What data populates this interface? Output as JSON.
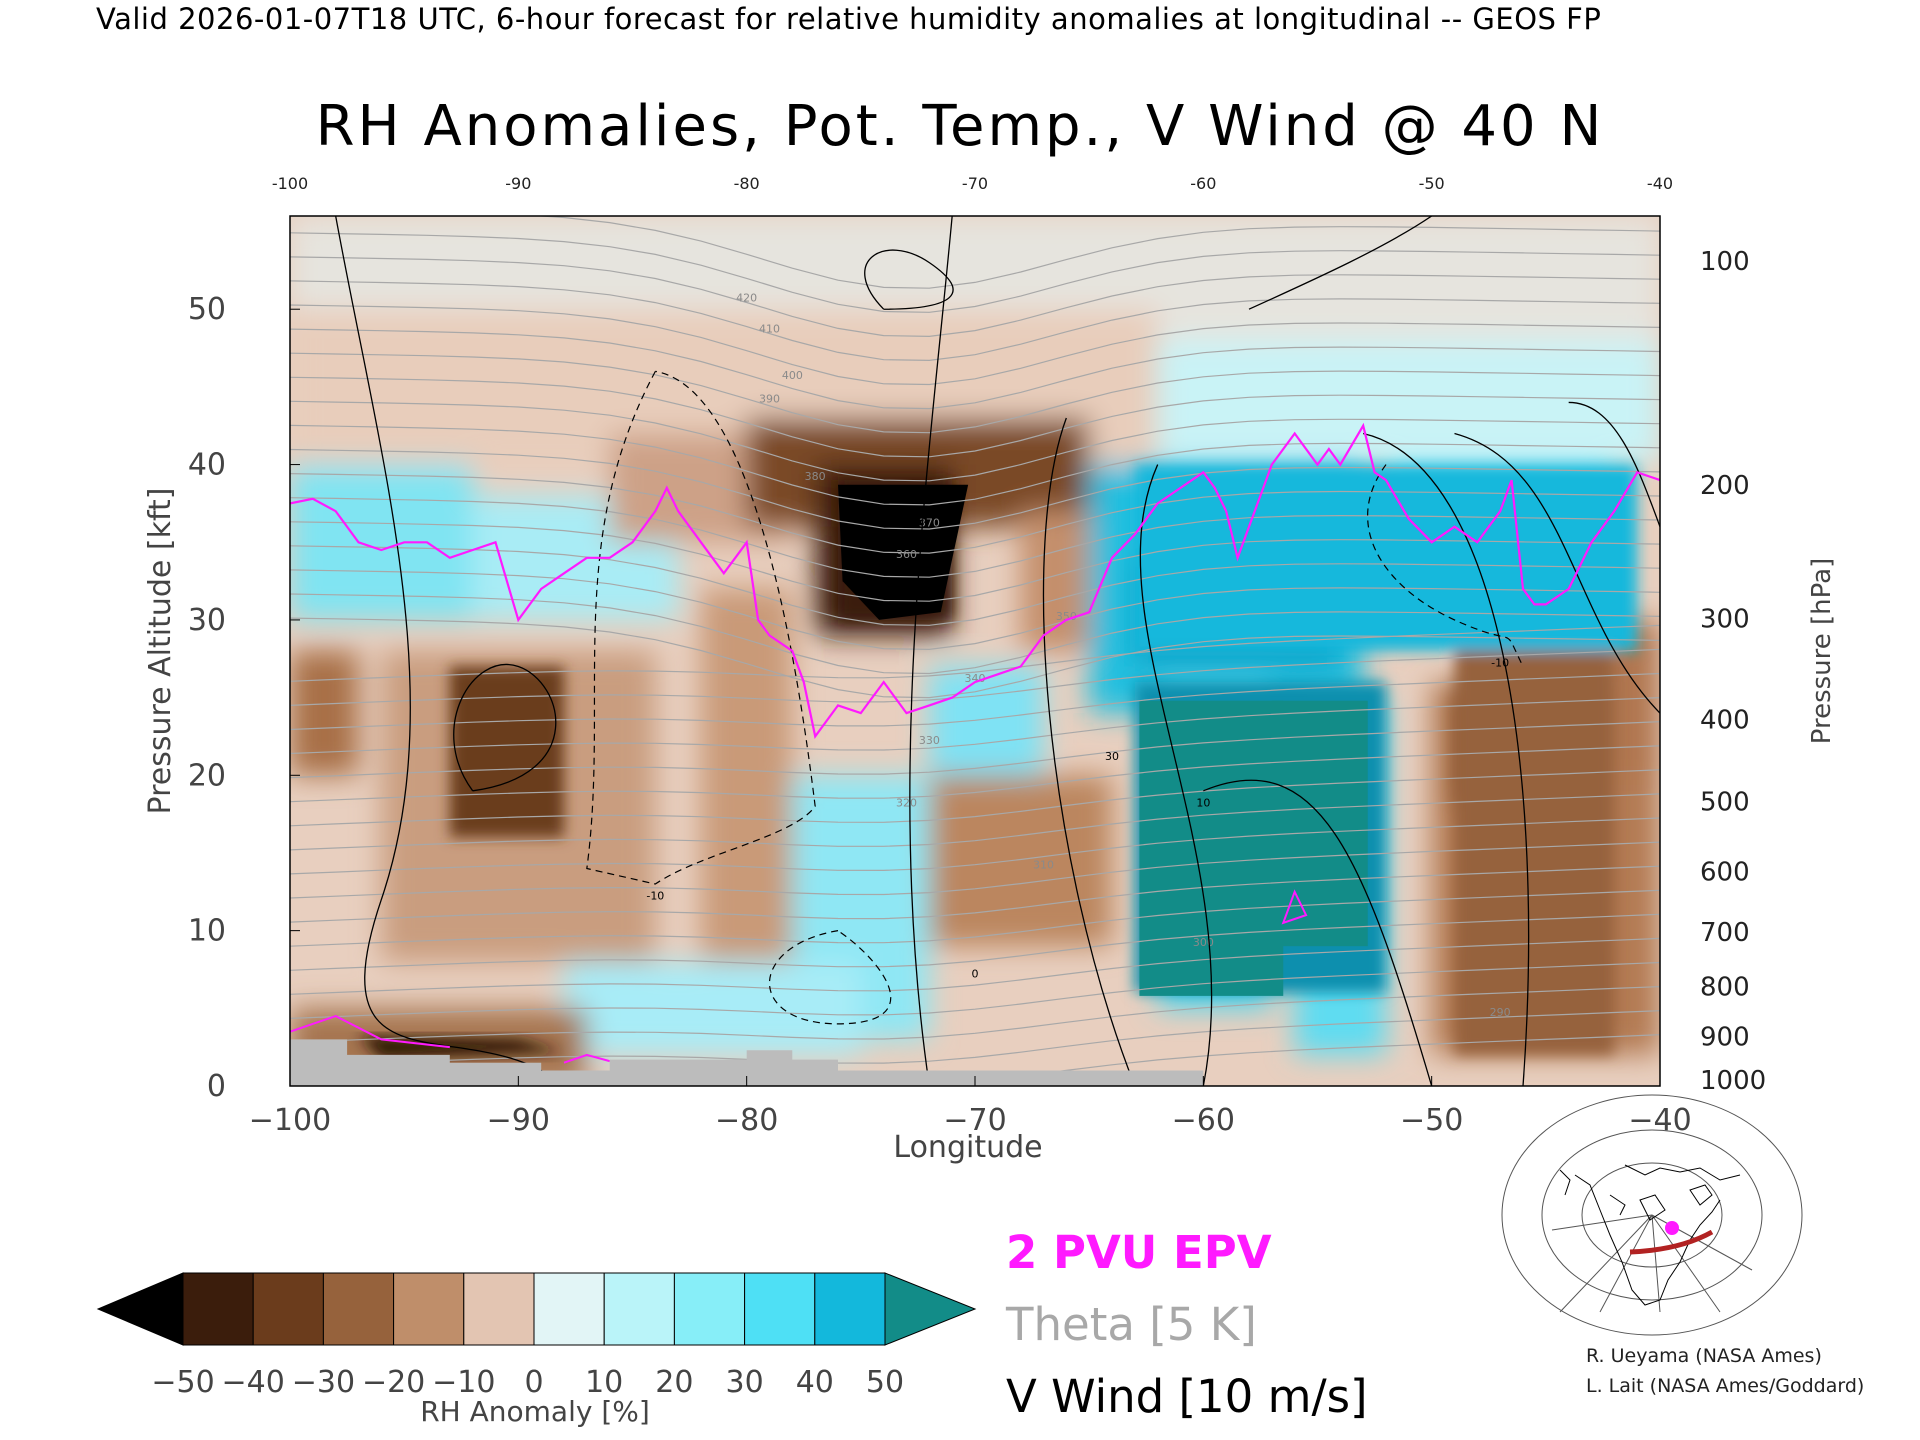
{
  "header": "Valid 2026-01-07T18 UTC, 6-hour forecast for relative humidity anomalies at longitudinal -- GEOS FP",
  "chart_data": {
    "type": "heatmap",
    "title": "RH Anomalies, Pot. Temp., V Wind @ 40 N",
    "xlabel": "Longitude",
    "ylabel": "Pressure Altitude [kft]",
    "y2label": "Pressure [hPa]",
    "xlim": [
      -100,
      -40
    ],
    "ylim": [
      0,
      56
    ],
    "x_ticks": [
      "−100",
      "−90",
      "−80",
      "−70",
      "−60",
      "−50",
      "−40"
    ],
    "x_top_ticks": [
      "-100",
      "-90",
      "-80",
      "-70",
      "-60",
      "-50",
      "-40"
    ],
    "y_ticks": [
      {
        "v": 0,
        "t": "0"
      },
      {
        "v": 10,
        "t": "10"
      },
      {
        "v": 20,
        "t": "20"
      },
      {
        "v": 30,
        "t": "30"
      },
      {
        "v": 40,
        "t": "40"
      },
      {
        "v": 50,
        "t": "50"
      }
    ],
    "pressure_ticks": [
      {
        "alt": 53.1,
        "t": "100"
      },
      {
        "alt": 38.7,
        "t": "200"
      },
      {
        "alt": 30.1,
        "t": "300"
      },
      {
        "alt": 23.6,
        "t": "400"
      },
      {
        "alt": 18.3,
        "t": "500"
      },
      {
        "alt": 13.8,
        "t": "600"
      },
      {
        "alt": 9.9,
        "t": "700"
      },
      {
        "alt": 6.4,
        "t": "800"
      },
      {
        "alt": 3.2,
        "t": "900"
      },
      {
        "alt": 0.4,
        "t": "1000"
      }
    ],
    "colorbar": {
      "label": "RH Anomaly [%]",
      "ticks": [
        "−50",
        "−40",
        "−30",
        "−20",
        "−10",
        "0",
        "10",
        "20",
        "30",
        "40",
        "50"
      ],
      "colors": [
        "#000000",
        "#3b1d0c",
        "#6b3c1c",
        "#96623c",
        "#bf8e6a",
        "#e3c5b2",
        "#e2f5f6",
        "#baf4f9",
        "#87eef8",
        "#4ee0f5",
        "#13b8dc",
        "#0c8fae",
        "#128c88"
      ]
    },
    "regions": [
      {
        "name": "strong dry anomaly",
        "lon": [
          -76,
          -71
        ],
        "alt": [
          30,
          39
        ],
        "rh": -50
      },
      {
        "name": "dry anomaly",
        "lon": [
          -93,
          -88
        ],
        "alt": [
          16,
          27
        ],
        "rh": -35
      },
      {
        "name": "dry anomaly",
        "lon": [
          -49,
          -42
        ],
        "alt": [
          2,
          28
        ],
        "rh": -30
      },
      {
        "name": "moist anomaly",
        "lon": [
          -63,
          -52
        ],
        "alt": [
          6,
          26
        ],
        "rh": 55
      },
      {
        "name": "moist anomaly",
        "lon": [
          -63,
          -41
        ],
        "alt": [
          28,
          40
        ],
        "rh": 40
      }
    ],
    "epv_2pvu": {
      "lon": [
        -100,
        -99,
        -98,
        -97,
        -96,
        -95,
        -94,
        -93,
        -92,
        -91,
        -90,
        -89,
        -88,
        -87,
        -86,
        -85,
        -84,
        -83.5,
        -83,
        -82,
        -81.5,
        -81,
        -80.5,
        -80,
        -79.5,
        -79,
        -78,
        -77.5,
        -77,
        -76,
        -75,
        -74,
        -73,
        -72,
        -71,
        -70,
        -69,
        -68,
        -67,
        -66,
        -65,
        -64,
        -63,
        -62,
        -61,
        -60,
        -59.5,
        -59,
        -58.5,
        -58,
        -57,
        -56,
        -55,
        -54.5,
        -54,
        -53,
        -52.5,
        -52,
        -51,
        -50,
        -49,
        -48,
        -47,
        -46.5,
        -46,
        -45.5,
        -45,
        -44,
        -43,
        -42,
        -41,
        -40
      ],
      "alt": [
        37.5,
        37.8,
        37,
        35,
        34.5,
        35,
        35,
        34,
        34.5,
        35,
        30,
        32,
        33,
        34,
        34,
        35,
        37,
        38.5,
        37,
        35,
        34,
        33,
        34,
        35,
        30,
        29,
        28,
        26,
        22.5,
        24.5,
        24,
        26,
        24,
        24.5,
        25,
        26,
        26.5,
        27,
        29,
        30,
        30.5,
        34,
        35.5,
        37.5,
        38.5,
        39.5,
        38.5,
        37,
        34,
        36,
        40,
        42,
        40,
        41,
        40,
        42.5,
        39.5,
        39,
        36.5,
        35,
        36,
        35,
        37,
        39,
        32,
        31,
        31,
        32,
        35,
        37,
        39.5,
        39
      ]
    },
    "theta_levels": [
      "290",
      "300",
      "310",
      "320",
      "330",
      "340",
      "350",
      "360",
      "370",
      "380",
      "390",
      "400",
      "410",
      "420"
    ],
    "vwind_labels": [
      "0",
      "10",
      "-10",
      "30",
      "-10"
    ],
    "legend": {
      "epv": "2 PVU EPV",
      "theta": "Theta [5 K]",
      "vwind": "V Wind [10 m/s]",
      "epv_color": "#ff1aff",
      "theta_color": "#a8a8a8"
    },
    "terrain_color": "#bcbcbc"
  },
  "credits": [
    "R. Ueyama (NASA Ames)",
    "L. Lait (NASA Ames/Goddard)"
  ]
}
